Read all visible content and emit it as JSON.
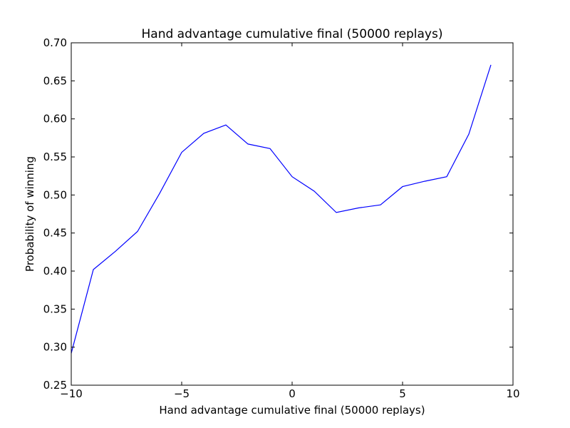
{
  "chart_data": {
    "type": "line",
    "title": "Hand advantage cumulative final (50000 replays)",
    "xlabel": "Hand advantage cumulative final (50000 replays)",
    "ylabel": "Probability of winning",
    "xlim": [
      -10,
      10
    ],
    "ylim": [
      0.25,
      0.7
    ],
    "xticks": [
      -10,
      -5,
      0,
      5,
      10
    ],
    "xtick_labels": [
      "−10",
      "−5",
      "0",
      "5",
      "10"
    ],
    "yticks": [
      0.25,
      0.3,
      0.35,
      0.4,
      0.45,
      0.5,
      0.55,
      0.6,
      0.65,
      0.7
    ],
    "ytick_labels": [
      "0.25",
      "0.30",
      "0.35",
      "0.40",
      "0.45",
      "0.50",
      "0.55",
      "0.60",
      "0.65",
      "0.70"
    ],
    "grid": false,
    "series": [
      {
        "color": "#0000ff",
        "x": [
          -10,
          -9,
          -8,
          -7,
          -6,
          -5,
          -4,
          -3,
          -2,
          -1,
          0,
          1,
          2,
          3,
          4,
          5,
          6,
          7,
          8,
          9
        ],
        "y": [
          0.292,
          0.402,
          0.426,
          0.452,
          0.502,
          0.556,
          0.581,
          0.592,
          0.567,
          0.561,
          0.524,
          0.505,
          0.477,
          0.483,
          0.487,
          0.511,
          0.518,
          0.524,
          0.58,
          0.671
        ]
      }
    ]
  }
}
